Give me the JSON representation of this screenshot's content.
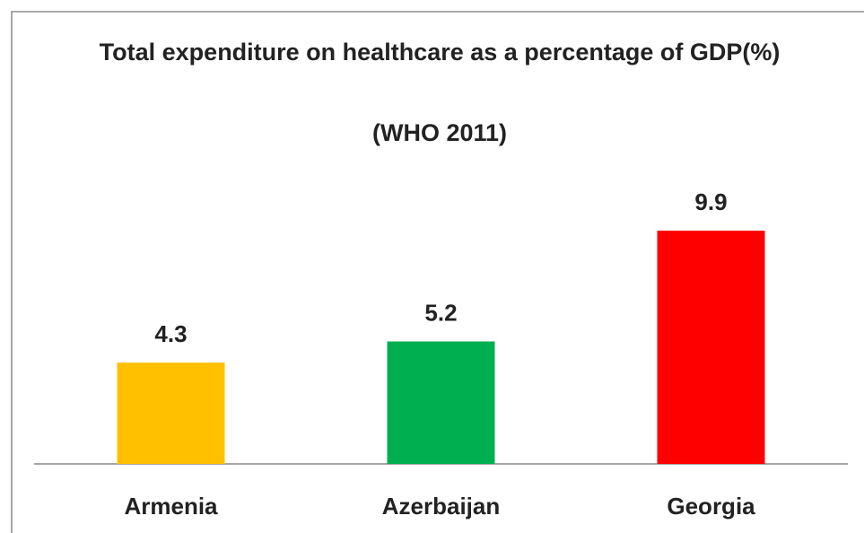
{
  "chart_data": {
    "type": "bar",
    "title": "Total expenditure on healthcare as a percentage of GDP(%)",
    "subtitle": "(WHO 2011)",
    "categories": [
      "Armenia",
      "Azerbaijan",
      "Georgia"
    ],
    "values": [
      4.3,
      5.2,
      9.9
    ],
    "colors": [
      "#ffc000",
      "#00b050",
      "#ff0000"
    ],
    "ylim": [
      0,
      12
    ],
    "grid": false
  }
}
